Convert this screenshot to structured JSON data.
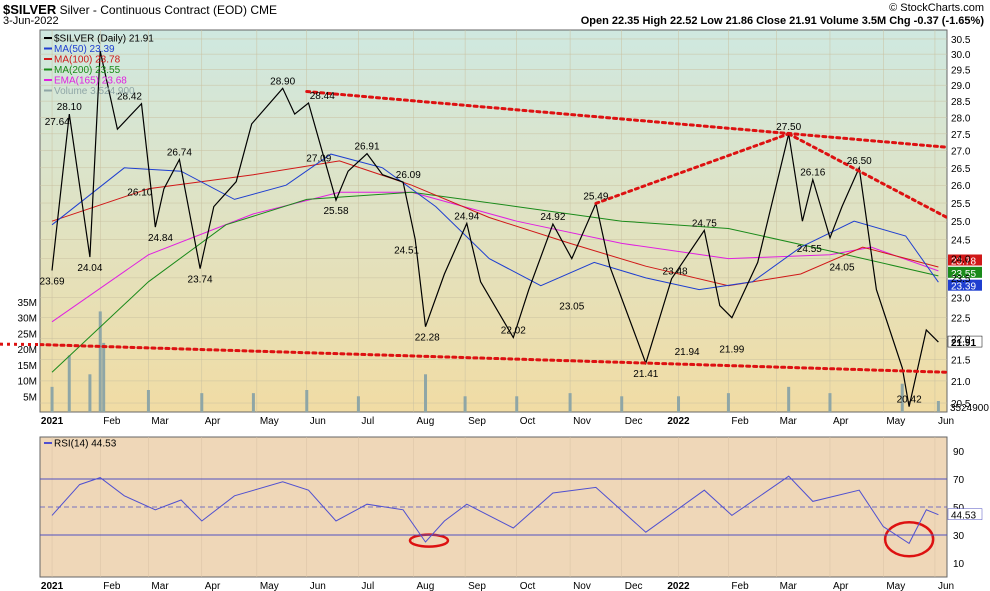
{
  "header": {
    "symbol": "$SILVER",
    "name": "Silver - Continuous Contract (EOD)",
    "exchange": "CME",
    "date": "3-Jun-2022",
    "watermark": "© StockCharts.com",
    "ohlc": "Open 22.35  High 22.52  Low 21.86  Close 21.91  Volume 3.5M  Chg -0.37 (-1.65%)"
  },
  "colors": {
    "price": "#000000",
    "ma50": "#1f3fd0",
    "ma100": "#d01818",
    "ma200": "#1a8a1a",
    "ema165": "#e020e0",
    "volume": "#8fa6a6",
    "rsi": "#5050d0",
    "trend": "#dd1111",
    "price_bg_top": "#cfe8e0",
    "price_bg_bottom": "#f1dca4",
    "rsi_bg": "#efd7b8"
  },
  "legend": [
    {
      "key": "price",
      "label": "$SILVER (Daily) 21.91"
    },
    {
      "key": "ma50",
      "label": "MA(50) 23.39"
    },
    {
      "key": "ma100",
      "label": "MA(100) 23.78"
    },
    {
      "key": "ma200",
      "label": "MA(200) 23.55"
    },
    {
      "key": "ema165",
      "label": "EMA(165) 23.68"
    },
    {
      "key": "volume",
      "label": "Volume 3,524,900"
    }
  ],
  "rsi_legend": "RSI(14) 44.53",
  "chart_data": [
    {
      "type": "line",
      "title": "$SILVER (Daily) 21.91",
      "x_labels": [
        "2021",
        "Feb",
        "Mar",
        "Apr",
        "May",
        "Jun",
        "Jul",
        "Aug",
        "Sep",
        "Oct",
        "Nov",
        "Dec",
        "2022",
        "Feb",
        "Mar",
        "Apr",
        "May",
        "Jun"
      ],
      "y_ticks": [
        20.5,
        21.0,
        21.5,
        22.0,
        22.5,
        23.0,
        23.5,
        24.0,
        24.5,
        25.0,
        25.5,
        26.0,
        26.5,
        27.0,
        27.5,
        28.0,
        28.5,
        29.0,
        29.5,
        30.0,
        30.5
      ],
      "ylim": [
        20.3,
        30.8
      ],
      "scale": "log",
      "series": [
        {
          "name": "$SILVER",
          "x": [
            "2021-01-04",
            "2021-01-14",
            "2021-01-26",
            "2021-02-01",
            "2021-02-11",
            "2021-02-25",
            "2021-03-05",
            "2021-03-10",
            "2021-03-19",
            "2021-03-31",
            "2021-04-08",
            "2021-04-21",
            "2021-04-30",
            "2021-05-18",
            "2021-05-25",
            "2021-06-02",
            "2021-06-18",
            "2021-06-25",
            "2021-07-06",
            "2021-07-15",
            "2021-07-27",
            "2021-08-03",
            "2021-08-09",
            "2021-08-20",
            "2021-09-02",
            "2021-09-10",
            "2021-09-29",
            "2021-10-08",
            "2021-10-22",
            "2021-11-02",
            "2021-11-16",
            "2021-11-24",
            "2021-12-15",
            "2021-12-30",
            "2022-01-18",
            "2022-01-27",
            "2022-02-03",
            "2022-02-18",
            "2022-03-08",
            "2022-03-16",
            "2022-03-22",
            "2022-04-01",
            "2022-04-08",
            "2022-04-18",
            "2022-04-28",
            "2022-05-13",
            "2022-05-17",
            "2022-05-27",
            "2022-06-03"
          ],
          "values": [
            23.69,
            28.1,
            24.04,
            30.1,
            27.64,
            28.42,
            24.84,
            25.9,
            26.74,
            23.74,
            25.4,
            26.1,
            27.8,
            28.9,
            28.1,
            28.44,
            25.58,
            26.4,
            26.91,
            26.3,
            26.09,
            24.51,
            22.28,
            23.6,
            24.94,
            23.4,
            22.02,
            23.2,
            24.92,
            24.0,
            25.49,
            23.8,
            21.41,
            23.48,
            24.75,
            22.8,
            22.5,
            23.9,
            27.5,
            25.0,
            26.16,
            24.55,
            25.4,
            26.5,
            23.2,
            21.3,
            20.42,
            22.2,
            21.91
          ]
        },
        {
          "name": "MA(50)",
          "x": [
            "2021-01-04",
            "2021-02-15",
            "2021-03-20",
            "2021-04-20",
            "2021-05-20",
            "2021-06-15",
            "2021-07-15",
            "2021-08-15",
            "2021-09-15",
            "2021-10-15",
            "2021-11-15",
            "2021-12-15",
            "2022-01-15",
            "2022-02-15",
            "2022-03-15",
            "2022-04-15",
            "2022-05-15",
            "2022-06-03"
          ],
          "values": [
            24.9,
            26.5,
            26.4,
            25.6,
            26.0,
            26.9,
            26.5,
            25.4,
            24.0,
            23.3,
            23.9,
            23.5,
            23.2,
            23.4,
            24.3,
            25.0,
            24.6,
            23.39
          ]
        },
        {
          "name": "MA(100)",
          "x": [
            "2021-01-04",
            "2021-03-01",
            "2021-05-01",
            "2021-06-20",
            "2021-08-01",
            "2021-09-15",
            "2021-11-01",
            "2021-12-15",
            "2022-02-01",
            "2022-03-15",
            "2022-04-20",
            "2022-06-03"
          ],
          "values": [
            25.0,
            25.9,
            26.3,
            26.7,
            26.0,
            25.1,
            24.4,
            23.8,
            23.3,
            23.6,
            24.3,
            23.78
          ]
        },
        {
          "name": "MA(200)",
          "x": [
            "2021-01-04",
            "2021-03-01",
            "2021-04-15",
            "2021-06-01",
            "2021-08-01",
            "2021-10-01",
            "2021-12-01",
            "2022-02-01",
            "2022-04-01",
            "2022-06-03"
          ],
          "values": [
            21.2,
            23.4,
            24.9,
            25.6,
            25.8,
            25.4,
            25.0,
            24.8,
            24.2,
            23.55
          ]
        },
        {
          "name": "EMA(165)",
          "x": [
            "2021-01-04",
            "2021-03-01",
            "2021-05-01",
            "2021-06-20",
            "2021-08-01",
            "2021-10-01",
            "2021-12-01",
            "2022-02-01",
            "2022-04-01",
            "2022-04-25",
            "2022-06-03"
          ],
          "values": [
            22.4,
            24.1,
            25.2,
            25.8,
            25.8,
            25.0,
            24.4,
            24.0,
            24.1,
            24.3,
            23.68
          ]
        }
      ],
      "annotations": [
        "23.69",
        "28.10",
        "24.04",
        "27.64",
        "28.42",
        "26.10",
        "24.84",
        "26.74",
        "23.74",
        "28.90",
        "28.44",
        "27.09",
        "26.91",
        "25.58",
        "26.09",
        "24.51",
        "22.28",
        "24.94",
        "22.02",
        "24.92",
        "25.49",
        "23.05",
        "21.41",
        "23.48",
        "24.75",
        "21.94",
        "21.99",
        "27.50",
        "26.16",
        "24.55",
        "26.50",
        "24.05",
        "20.42"
      ],
      "right_labels": [
        "23.78",
        "23.55",
        "23.39",
        "21.91"
      ]
    },
    {
      "type": "bar",
      "title": "Volume 3,524,900",
      "y_ticks": [
        "5M",
        "10M",
        "15M",
        "20M",
        "25M",
        "30M",
        "35M"
      ],
      "ylim": [
        0,
        35
      ],
      "last_value_label": "3524900",
      "x": [
        "2021-01-04",
        "2021-01-14",
        "2021-01-26",
        "2021-02-01",
        "2021-02-03",
        "2021-03-01",
        "2021-04-01",
        "2021-05-01",
        "2021-06-01",
        "2021-07-01",
        "2021-08-09",
        "2021-09-01",
        "2021-10-01",
        "2021-11-01",
        "2021-12-01",
        "2022-01-03",
        "2022-02-01",
        "2022-03-08",
        "2022-04-01",
        "2022-05-13",
        "2022-06-03"
      ],
      "values": [
        8,
        18,
        12,
        32,
        22,
        7,
        6,
        6,
        7,
        5,
        12,
        5,
        5,
        6,
        5,
        5,
        6,
        8,
        6,
        9,
        3.5
      ]
    },
    {
      "type": "line",
      "title": "RSI(14) 44.53",
      "y_ticks": [
        10,
        30,
        50,
        70,
        90
      ],
      "ylim": [
        0,
        100
      ],
      "ref_lines": [
        30,
        50,
        70
      ],
      "last_value_label": "44.53",
      "x": [
        "2021-01-04",
        "2021-01-20",
        "2021-02-01",
        "2021-02-15",
        "2021-03-05",
        "2021-03-20",
        "2021-04-01",
        "2021-04-20",
        "2021-05-18",
        "2021-06-02",
        "2021-06-18",
        "2021-07-06",
        "2021-07-27",
        "2021-08-09",
        "2021-08-20",
        "2021-09-02",
        "2021-09-29",
        "2021-10-22",
        "2021-11-16",
        "2021-12-15",
        "2022-01-18",
        "2022-02-03",
        "2022-03-08",
        "2022-03-22",
        "2022-04-18",
        "2022-05-02",
        "2022-05-17",
        "2022-05-27",
        "2022-06-03"
      ],
      "values": [
        44,
        66,
        71,
        58,
        48,
        55,
        40,
        58,
        68,
        62,
        40,
        52,
        48,
        25,
        40,
        52,
        35,
        60,
        64,
        32,
        62,
        44,
        72,
        54,
        62,
        36,
        24,
        48,
        44.53
      ]
    }
  ],
  "rsi_x_labels": [
    "2021",
    "Feb",
    "Mar",
    "Apr",
    "May",
    "Jun",
    "Jul",
    "Aug",
    "Sep",
    "Oct",
    "Nov",
    "Dec",
    "2022",
    "Feb",
    "Mar",
    "Apr",
    "May",
    "Jun"
  ]
}
